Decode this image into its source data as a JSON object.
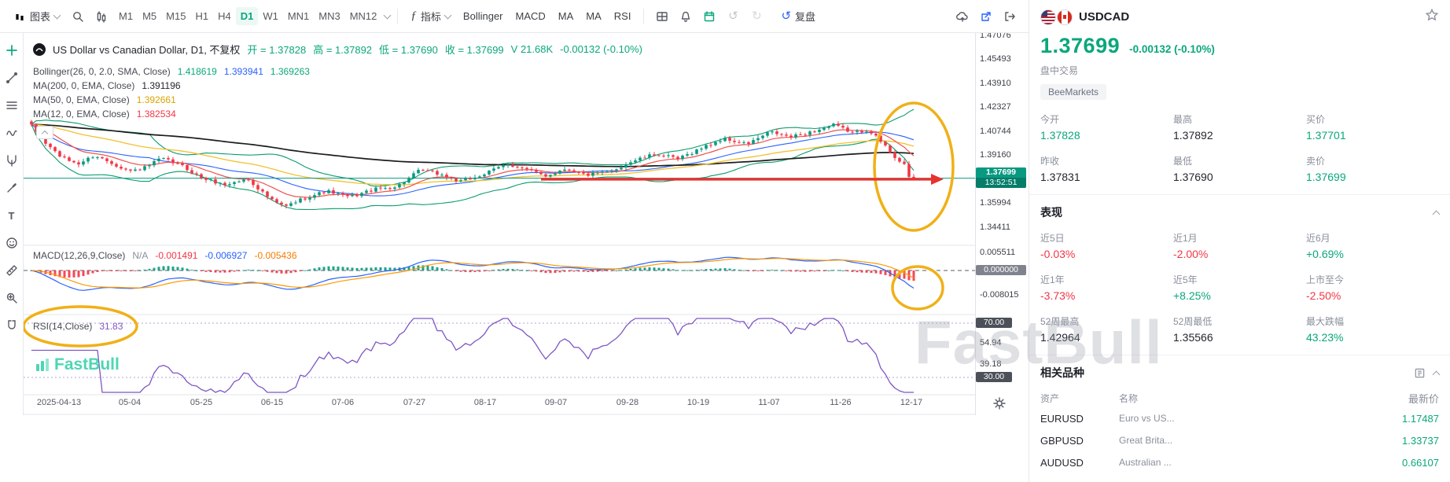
{
  "colors": {
    "up": "#089981",
    "down": "#f23645",
    "accent_green": "#0aa77c",
    "yellow": "#f0b017",
    "arrow_red": "#e8322e",
    "macd_line": "#2962ff",
    "macd_signal": "#ff9800",
    "rsi": "#7e57c2",
    "boll_band": "#0b9c6e",
    "boll_mid": "#2962ff",
    "ma200": "#1c1c1c",
    "ma50": "#f2c12e",
    "ma12": "#ef5350"
  },
  "toolbar": {
    "chart_menu_label": "图表",
    "timeframes": [
      "M1",
      "M5",
      "M15",
      "H1",
      "H4",
      "D1",
      "W1",
      "MN1",
      "MN3",
      "MN12"
    ],
    "active_timeframe": "D1",
    "indicators_label": "指标",
    "indicator_shortcuts": [
      "Bollinger",
      "MACD",
      "MA",
      "MA",
      "RSI"
    ],
    "replay_label": "复盘"
  },
  "sidebar_tools": [
    "crosshair",
    "trend-line",
    "fibonacci",
    "elliott-wave",
    "pitchfork",
    "brush",
    "text",
    "emoji",
    "measure",
    "zoom-in",
    "magnet"
  ],
  "legend": {
    "symbol_title": "US Dollar vs Canadian Dollar, D1, 不复权",
    "o": "开 = 1.37828",
    "h": "高 = 1.37892",
    "l": "低 = 1.37690",
    "c": "收 = 1.37699",
    "v": "V 21.68K",
    "chg": "-0.00132 (-0.10%)",
    "boll_label": "Bollinger(26, 0, 2.0, SMA, Close)",
    "boll_u": "1.418619",
    "boll_m": "1.393941",
    "boll_l": "1.369263",
    "ma200_label": "MA(200, 0, EMA, Close)",
    "ma200_v": "1.391196",
    "ma50_label": "MA(50, 0, EMA, Close)",
    "ma50_v": "1.392661",
    "ma12_label": "MA(12, 0, EMA, Close)",
    "ma12_v": "1.382534",
    "macd_label": "MACD(12,26,9,Close)",
    "macd_na": "N/A",
    "macd_v1": "-0.001491",
    "macd_v2": "-0.006927",
    "macd_v3": "-0.005436",
    "rsi_label": "RSI(14,Close)",
    "rsi_v": "31.83"
  },
  "axes": {
    "price": [
      "1.47076",
      "1.45493",
      "1.43910",
      "1.42327",
      "1.40744",
      "1.39160",
      "1.35994",
      "1.34411"
    ],
    "price_badge": {
      "value": "1.37699",
      "time": "13:52:51"
    },
    "macd": [
      "0.005511",
      "0.000000",
      "-0.008015"
    ],
    "rsi": [
      "70.00",
      "54.94",
      "39.18",
      "30.00"
    ],
    "dates": [
      "2025-04-13",
      "05-04",
      "05-25",
      "06-15",
      "07-06",
      "07-27",
      "08-17",
      "09-07",
      "09-28",
      "10-19",
      "11-07",
      "11-26",
      "12-17"
    ]
  },
  "chart_data": {
    "type": "candlestick",
    "symbol": "USDCAD",
    "timeframe": "D1",
    "ohlc_current": {
      "open": 1.37828,
      "high": 1.37892,
      "low": 1.3769,
      "close": 1.37699,
      "volume": "21.68K",
      "change": -0.00132,
      "change_pct": "-0.10%"
    },
    "price_axis_ticks": [
      1.47076,
      1.45493,
      1.4391,
      1.42327,
      1.40744,
      1.3916,
      1.35994,
      1.34411
    ],
    "close_waypoints": [
      [
        40,
        1.4115
      ],
      [
        58,
        1.4
      ],
      [
        80,
        1.39
      ],
      [
        100,
        1.3865
      ],
      [
        120,
        1.392
      ],
      [
        140,
        1.3875
      ],
      [
        165,
        1.3815
      ],
      [
        185,
        1.384
      ],
      [
        205,
        1.39
      ],
      [
        230,
        1.3855
      ],
      [
        255,
        1.3775
      ],
      [
        285,
        1.3725
      ],
      [
        315,
        1.3765
      ],
      [
        345,
        1.3625
      ],
      [
        362,
        1.358
      ],
      [
        385,
        1.3635
      ],
      [
        415,
        1.3685
      ],
      [
        445,
        1.3645
      ],
      [
        475,
        1.3695
      ],
      [
        505,
        1.3715
      ],
      [
        535,
        1.3825
      ],
      [
        560,
        1.3795
      ],
      [
        585,
        1.3745
      ],
      [
        615,
        1.3795
      ],
      [
        645,
        1.3865
      ],
      [
        670,
        1.3825
      ],
      [
        695,
        1.3785
      ],
      [
        720,
        1.3835
      ],
      [
        745,
        1.379
      ],
      [
        775,
        1.381
      ],
      [
        805,
        1.3885
      ],
      [
        835,
        1.393
      ],
      [
        862,
        1.3895
      ],
      [
        890,
        1.3965
      ],
      [
        920,
        1.403
      ],
      [
        950,
        1.3995
      ],
      [
        980,
        1.4075
      ],
      [
        1005,
        1.404
      ],
      [
        1035,
        1.408
      ],
      [
        1060,
        1.412
      ],
      [
        1085,
        1.407
      ],
      [
        1105,
        1.409
      ],
      [
        1125,
        1.3985
      ],
      [
        1140,
        1.39
      ],
      [
        1152,
        1.3855
      ],
      [
        1162,
        1.377
      ]
    ],
    "indicators": {
      "bollinger": {
        "period": 26,
        "dev": 2.0,
        "upper": 1.418619,
        "mid": 1.393941,
        "lower": 1.369263
      },
      "ma200": 1.391196,
      "ma50": 1.392661,
      "ma12": 1.382534,
      "macd": {
        "fast": 12,
        "slow": 26,
        "signal_period": 9,
        "hist": -0.001491,
        "macd": -0.006927,
        "signal": -0.005436
      },
      "rsi": {
        "period": 14,
        "value": 31.83,
        "upper_band": 70,
        "lower_band": 30
      }
    },
    "macd_axis_ticks": [
      0.005511,
      0.0,
      -0.008015
    ],
    "rsi_axis_ticks": [
      70.0,
      54.94,
      39.18,
      30.0
    ],
    "x_labels": [
      "2025-04-13",
      "05-04",
      "05-25",
      "06-15",
      "07-06",
      "07-27",
      "08-17",
      "09-07",
      "09-28",
      "10-19",
      "11-07",
      "11-26",
      "12-17"
    ]
  },
  "panel": {
    "symbol": "USDCAD",
    "price": "1.37699",
    "change": "-0.00132 (-0.10%)",
    "session_label": "盘中交易",
    "broker": "BeeMarkets",
    "stats": [
      {
        "label": "今开",
        "value": "1.37828"
      },
      {
        "label": "最高",
        "value": "1.37892"
      },
      {
        "label": "买价",
        "value": "1.37701"
      },
      {
        "label": "昨收",
        "value": "1.37831"
      },
      {
        "label": "最低",
        "value": "1.37690"
      },
      {
        "label": "卖价",
        "value": "1.37699"
      }
    ],
    "performance_title": "表现",
    "performance": [
      {
        "label": "近5日",
        "value": "-0.03%"
      },
      {
        "label": "近1月",
        "value": "-2.00%"
      },
      {
        "label": "近6月",
        "value": "+0.69%"
      },
      {
        "label": "近1年",
        "value": "-3.73%"
      },
      {
        "label": "近5年",
        "value": "+8.25%"
      },
      {
        "label": "上市至今",
        "value": "-2.50%"
      },
      {
        "label": "52周最高",
        "value": "1.42964"
      },
      {
        "label": "52周最低",
        "value": "1.35566"
      },
      {
        "label": "最大跌幅",
        "value": "43.23%"
      }
    ],
    "related_title": "相关品种",
    "related_headers": [
      "资产",
      "名称",
      "最新价"
    ],
    "related": [
      {
        "symbol": "EURUSD",
        "name": "Euro vs US...",
        "price": "1.17487"
      },
      {
        "symbol": "GBPUSD",
        "name": "Great Brita...",
        "price": "1.33737"
      },
      {
        "symbol": "AUDUSD",
        "name": "Australian ...",
        "price": "0.66107"
      }
    ]
  },
  "watermark_text": "FastBull",
  "chart_logo_text": "FastBull"
}
